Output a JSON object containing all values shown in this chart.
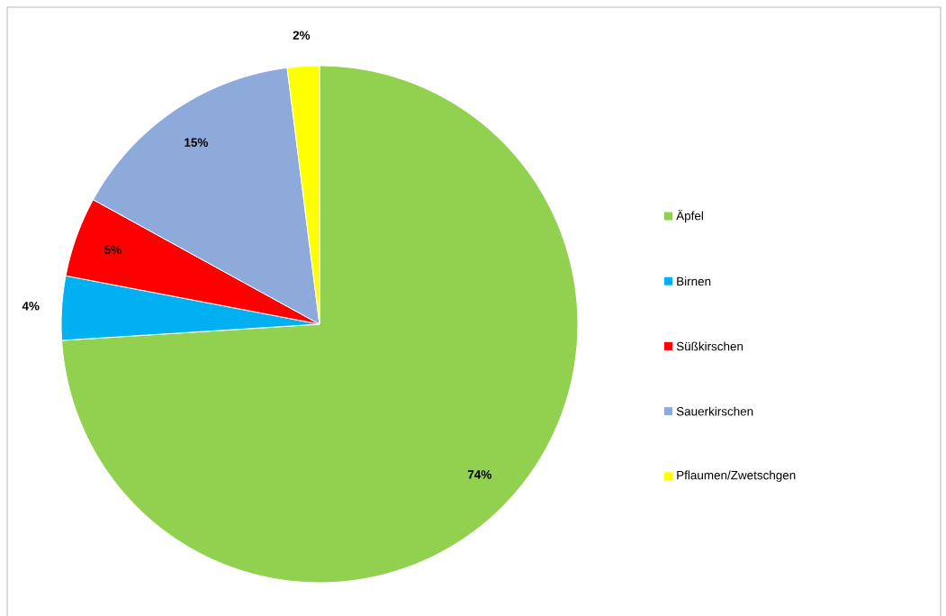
{
  "chart_data": {
    "type": "pie",
    "categories": [
      "Äpfel",
      "Birnen",
      "Süßkirschen",
      "Sauerkirschen",
      "Pflaumen/Zwetschgen"
    ],
    "values": [
      74,
      4,
      5,
      15,
      2
    ],
    "value_labels": [
      "74%",
      "4%",
      "5%",
      "15%",
      "2%"
    ],
    "colors": [
      "#92d050",
      "#00b0f0",
      "#ff0000",
      "#8eaadb",
      "#ffff00"
    ],
    "legend": "right"
  }
}
